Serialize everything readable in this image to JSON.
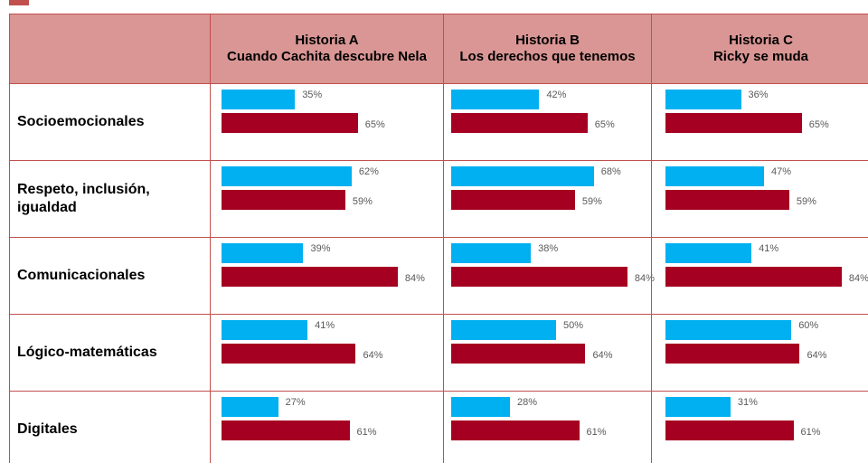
{
  "table": {
    "colors": [
      "#00b0f0",
      "#a50021"
    ],
    "columns": [
      {
        "title": "Historia A",
        "subtitle": "Cuando Cachita descubre Nela"
      },
      {
        "title": "Historia B",
        "subtitle": "Los derechos que tenemos"
      },
      {
        "title": "Historia C",
        "subtitle": "Ricky se muda"
      }
    ],
    "rows": [
      {
        "label": "Socioemocionales",
        "cells": [
          {
            "values": [
              35,
              65
            ],
            "value_labels": [
              "35%",
              "65%"
            ]
          },
          {
            "values": [
              42,
              65
            ],
            "value_labels": [
              "42%",
              "65%"
            ]
          },
          {
            "values": [
              36,
              65
            ],
            "value_labels": [
              "36%",
              "65%"
            ]
          }
        ]
      },
      {
        "label": "Respeto, inclusión, igualdad",
        "cells": [
          {
            "values": [
              62,
              59
            ],
            "value_labels": [
              "62%",
              "59%"
            ]
          },
          {
            "values": [
              68,
              59
            ],
            "value_labels": [
              "68%",
              "59%"
            ]
          },
          {
            "values": [
              47,
              59
            ],
            "value_labels": [
              "47%",
              "59%"
            ]
          }
        ]
      },
      {
        "label": "Comunicacionales",
        "cells": [
          {
            "values": [
              39,
              84
            ],
            "value_labels": [
              "39%",
              "84%"
            ]
          },
          {
            "values": [
              38,
              84
            ],
            "value_labels": [
              "38%",
              "84%"
            ]
          },
          {
            "values": [
              41,
              84
            ],
            "value_labels": [
              "41%",
              "84%"
            ]
          }
        ]
      },
      {
        "label": "Lógico-matemáticas",
        "cells": [
          {
            "values": [
              41,
              64
            ],
            "value_labels": [
              "41%",
              "64%"
            ]
          },
          {
            "values": [
              50,
              64
            ],
            "value_labels": [
              "50%",
              "64%"
            ]
          },
          {
            "values": [
              60,
              64
            ],
            "value_labels": [
              "60%",
              "64%"
            ]
          }
        ]
      },
      {
        "label": "Digitales",
        "cells": [
          {
            "values": [
              27,
              61
            ],
            "value_labels": [
              "27%",
              "61%"
            ]
          },
          {
            "values": [
              28,
              61
            ],
            "value_labels": [
              "28%",
              "61%"
            ]
          },
          {
            "values": [
              31,
              61
            ],
            "value_labels": [
              "31%",
              "61%"
            ]
          }
        ]
      }
    ]
  }
}
